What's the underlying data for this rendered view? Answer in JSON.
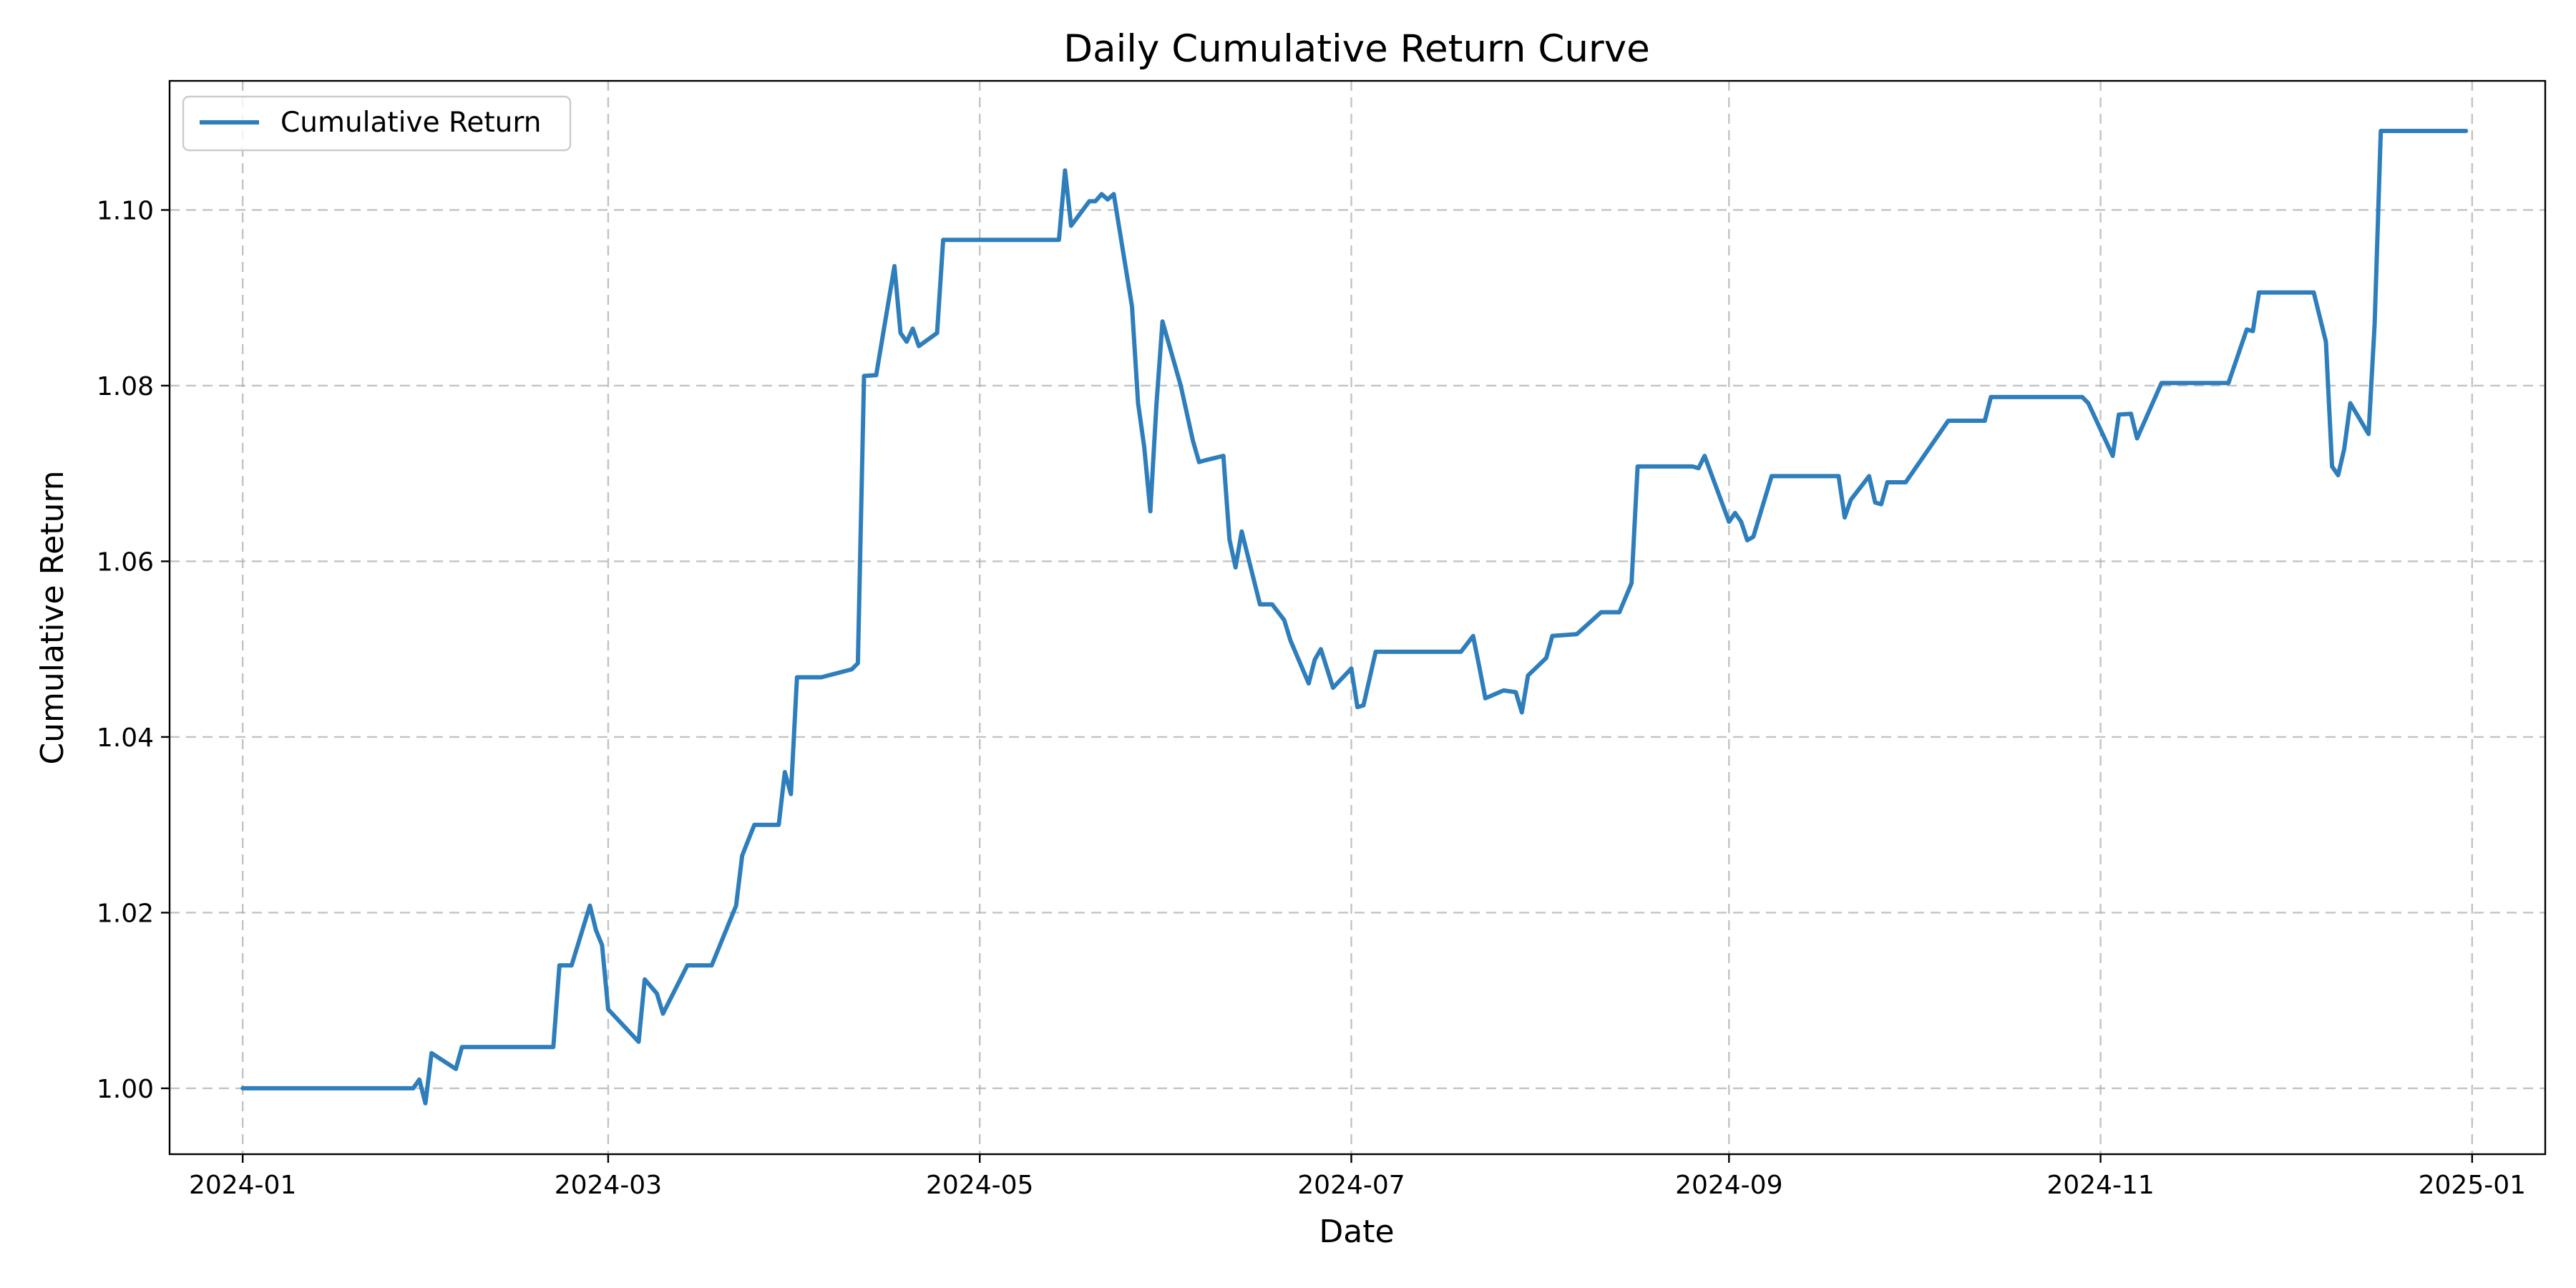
{
  "chart_data": {
    "type": "line",
    "title": "Daily Cumulative Return Curve",
    "xlabel": "Date",
    "ylabel": "Cumulative Return",
    "x_type": "date",
    "xlim": [
      "2023-12-20",
      "2025-01-13"
    ],
    "ylim": [
      0.9925,
      1.1147
    ],
    "x_ticks": [
      "2024-01-01",
      "2024-03-01",
      "2024-05-01",
      "2024-07-01",
      "2024-09-01",
      "2024-11-01",
      "2025-01-01"
    ],
    "x_tick_labels": [
      "2024-01",
      "2024-03",
      "2024-05",
      "2024-07",
      "2024-09",
      "2024-11",
      "2025-01"
    ],
    "y_ticks": [
      1.0,
      1.02,
      1.04,
      1.06,
      1.08,
      1.1
    ],
    "y_tick_labels": [
      "1.00",
      "1.02",
      "1.04",
      "1.06",
      "1.08",
      "1.10"
    ],
    "grid": true,
    "legend": "top-left",
    "series": [
      {
        "name": "Cumulative Return",
        "color": "#2e7ebc",
        "x": [
          "2024-01-01",
          "2024-01-29",
          "2024-01-30",
          "2024-01-31",
          "2024-02-01",
          "2024-02-05",
          "2024-02-06",
          "2024-02-21",
          "2024-02-22",
          "2024-02-24",
          "2024-02-27",
          "2024-02-28",
          "2024-02-29",
          "2024-03-01",
          "2024-03-06",
          "2024-03-07",
          "2024-03-09",
          "2024-03-10",
          "2024-03-14",
          "2024-03-18",
          "2024-03-22",
          "2024-03-23",
          "2024-03-25",
          "2024-03-29",
          "2024-03-30",
          "2024-03-31",
          "2024-04-01",
          "2024-04-05",
          "2024-04-10",
          "2024-04-11",
          "2024-04-12",
          "2024-04-14",
          "2024-04-17",
          "2024-04-18",
          "2024-04-19",
          "2024-04-20",
          "2024-04-21",
          "2024-04-24",
          "2024-04-25",
          "2024-05-14",
          "2024-05-15",
          "2024-05-16",
          "2024-05-19",
          "2024-05-20",
          "2024-05-21",
          "2024-05-22",
          "2024-05-23",
          "2024-05-26",
          "2024-05-27",
          "2024-05-28",
          "2024-05-29",
          "2024-05-30",
          "2024-05-31",
          "2024-06-03",
          "2024-06-05",
          "2024-06-06",
          "2024-06-07",
          "2024-06-10",
          "2024-06-11",
          "2024-06-12",
          "2024-06-13",
          "2024-06-16",
          "2024-06-18",
          "2024-06-19",
          "2024-06-20",
          "2024-06-21",
          "2024-06-24",
          "2024-06-25",
          "2024-06-26",
          "2024-06-28",
          "2024-07-01",
          "2024-07-02",
          "2024-07-03",
          "2024-07-05",
          "2024-07-08",
          "2024-07-19",
          "2024-07-21",
          "2024-07-22",
          "2024-07-23",
          "2024-07-26",
          "2024-07-28",
          "2024-07-29",
          "2024-07-30",
          "2024-08-02",
          "2024-08-03",
          "2024-08-07",
          "2024-08-11",
          "2024-08-14",
          "2024-08-16",
          "2024-08-17",
          "2024-08-26",
          "2024-08-27",
          "2024-08-28",
          "2024-09-01",
          "2024-09-02",
          "2024-09-03",
          "2024-09-04",
          "2024-09-05",
          "2024-09-08",
          "2024-09-19",
          "2024-09-20",
          "2024-09-21",
          "2024-09-24",
          "2024-09-25",
          "2024-09-26",
          "2024-09-27",
          "2024-09-30",
          "2024-10-07",
          "2024-10-13",
          "2024-10-14",
          "2024-10-29",
          "2024-10-30",
          "2024-11-03",
          "2024-11-04",
          "2024-11-06",
          "2024-11-07",
          "2024-11-11",
          "2024-11-22",
          "2024-11-25",
          "2024-11-26",
          "2024-11-27",
          "2024-12-06",
          "2024-12-08",
          "2024-12-09",
          "2024-12-10",
          "2024-12-11",
          "2024-12-12",
          "2024-12-15",
          "2024-12-16",
          "2024-12-17",
          "2024-12-18",
          "2024-12-31"
        ],
        "y": [
          1.0,
          1.0,
          1.001,
          0.9983,
          1.004,
          1.0022,
          1.0047,
          1.0047,
          1.014,
          1.014,
          1.0208,
          1.018,
          1.0163,
          1.009,
          1.0053,
          1.0124,
          1.0108,
          1.0085,
          1.014,
          1.014,
          1.0208,
          1.0265,
          1.03,
          1.03,
          1.036,
          1.0335,
          1.0468,
          1.0468,
          1.0477,
          1.0484,
          1.0811,
          1.0812,
          1.0936,
          1.086,
          1.085,
          1.0865,
          1.0845,
          1.086,
          1.0966,
          1.0966,
          1.1045,
          1.0982,
          1.101,
          1.101,
          1.1018,
          1.1012,
          1.1018,
          1.089,
          1.078,
          1.073,
          1.0657,
          1.0778,
          1.0873,
          1.08,
          1.0737,
          1.0713,
          1.0715,
          1.072,
          1.0625,
          1.0593,
          1.0634,
          1.0551,
          1.0551,
          1.0542,
          1.0533,
          1.051,
          1.0461,
          1.0488,
          1.05,
          1.0456,
          1.0478,
          1.0434,
          1.0436,
          1.0497,
          1.0497,
          1.0497,
          1.0515,
          1.048,
          1.0444,
          1.0453,
          1.0451,
          1.0428,
          1.047,
          1.049,
          1.0515,
          1.0517,
          1.0542,
          1.0542,
          1.0575,
          1.0708,
          1.0708,
          1.0706,
          1.072,
          1.0645,
          1.0655,
          1.0645,
          1.0624,
          1.0628,
          1.0697,
          1.0697,
          1.065,
          1.067,
          1.0697,
          1.0667,
          1.0665,
          1.069,
          1.069,
          1.076,
          1.076,
          1.0787,
          1.0787,
          1.078,
          1.072,
          1.0767,
          1.0768,
          1.074,
          1.0803,
          1.0803,
          1.0864,
          1.0862,
          1.0906,
          1.0906,
          1.085,
          1.0708,
          1.0698,
          1.0728,
          1.078,
          1.0745,
          1.087,
          1.109,
          1.109,
          1.109
        ]
      }
    ]
  }
}
